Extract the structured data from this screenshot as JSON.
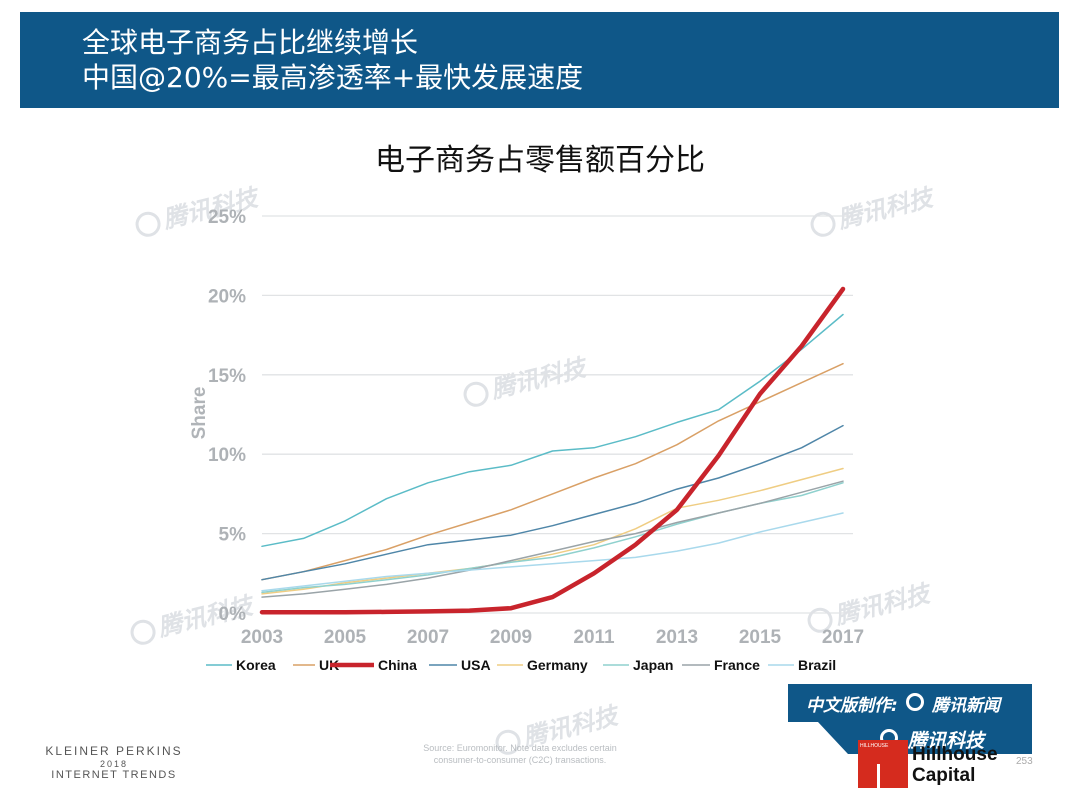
{
  "header": {
    "line1": "全球电子商务占比继续增长",
    "line2": "中国@20%=最高渗透率+最快发展速度"
  },
  "chart_data": {
    "type": "line",
    "title": "电子商务占零售额百分比",
    "ylabel": "Share",
    "xlabel": "",
    "ylim": [
      0,
      25
    ],
    "xlim": [
      2003,
      2017
    ],
    "y_ticks": [
      "0%",
      "5%",
      "10%",
      "15%",
      "20%",
      "25%"
    ],
    "x_ticks": [
      "2003",
      "2005",
      "2007",
      "2009",
      "2011",
      "2013",
      "2015",
      "2017"
    ],
    "grid": true,
    "legend_position": "bottom",
    "x": [
      2003,
      2004,
      2005,
      2006,
      2007,
      2008,
      2009,
      2010,
      2011,
      2012,
      2013,
      2014,
      2015,
      2016,
      2017
    ],
    "series": [
      {
        "name": "Korea",
        "color": "#5bbcc7",
        "values": [
          4.2,
          4.7,
          5.8,
          7.2,
          8.2,
          8.9,
          9.3,
          10.2,
          10.4,
          11.1,
          12.0,
          12.8,
          14.6,
          16.6,
          18.8
        ]
      },
      {
        "name": "UK",
        "color": "#d9a066",
        "values": [
          2.1,
          2.6,
          3.3,
          4.0,
          4.9,
          5.7,
          6.5,
          7.5,
          8.5,
          9.4,
          10.6,
          12.1,
          13.3,
          14.5,
          15.7
        ]
      },
      {
        "name": "China",
        "color": "#c8242c",
        "values": [
          0.05,
          0.05,
          0.05,
          0.07,
          0.1,
          0.15,
          0.3,
          1.0,
          2.5,
          4.3,
          6.5,
          9.9,
          13.8,
          16.8,
          20.4
        ]
      },
      {
        "name": "USA",
        "color": "#4f86a8",
        "values": [
          2.1,
          2.6,
          3.1,
          3.7,
          4.3,
          4.6,
          4.9,
          5.5,
          6.2,
          6.9,
          7.8,
          8.5,
          9.4,
          10.4,
          11.8
        ]
      },
      {
        "name": "Germany",
        "color": "#efcd83",
        "values": [
          1.2,
          1.5,
          1.9,
          2.2,
          2.5,
          2.8,
          3.2,
          3.7,
          4.3,
          5.3,
          6.6,
          7.1,
          7.7,
          8.4,
          9.1
        ]
      },
      {
        "name": "Japan",
        "color": "#8fd1ce",
        "values": [
          1.3,
          1.6,
          1.8,
          2.1,
          2.4,
          2.8,
          3.2,
          3.5,
          4.1,
          4.8,
          5.6,
          6.3,
          6.9,
          7.4,
          8.2
        ]
      },
      {
        "name": "France",
        "color": "#9aa4a8",
        "values": [
          1.0,
          1.2,
          1.5,
          1.8,
          2.2,
          2.7,
          3.3,
          3.9,
          4.5,
          5.0,
          5.7,
          6.3,
          6.9,
          7.6,
          8.3
        ]
      },
      {
        "name": "Brazil",
        "color": "#a9d9ec",
        "values": [
          1.4,
          1.7,
          2.0,
          2.3,
          2.5,
          2.7,
          2.9,
          3.1,
          3.3,
          3.5,
          3.9,
          4.4,
          5.1,
          5.7,
          6.3
        ]
      }
    ]
  },
  "watermark": {
    "text": "腾讯科技",
    "icon": "tencent-logo-icon"
  },
  "footer": {
    "kp_line1": "KLEINER PERKINS",
    "kp_line2": "2018",
    "kp_line3": "INTERNET TRENDS",
    "source_line1": "Source: Euromonitor. Note data excludes certain",
    "source_line2": "consumer-to-consumer (C2C) transactions.",
    "page_number": "253"
  },
  "badge": {
    "made_by": "中文版制作:",
    "news": "腾讯新闻",
    "tech": "腾讯科技",
    "icon": "tencent-ring-icon"
  },
  "hillhouse": {
    "mini": "HILLHOUSE",
    "line1": "Hillhouse",
    "line2": "Capital"
  },
  "colors": {
    "header_bg": "#0f5788",
    "china_line": "#c8242c",
    "brand_red": "#d52b1e"
  }
}
